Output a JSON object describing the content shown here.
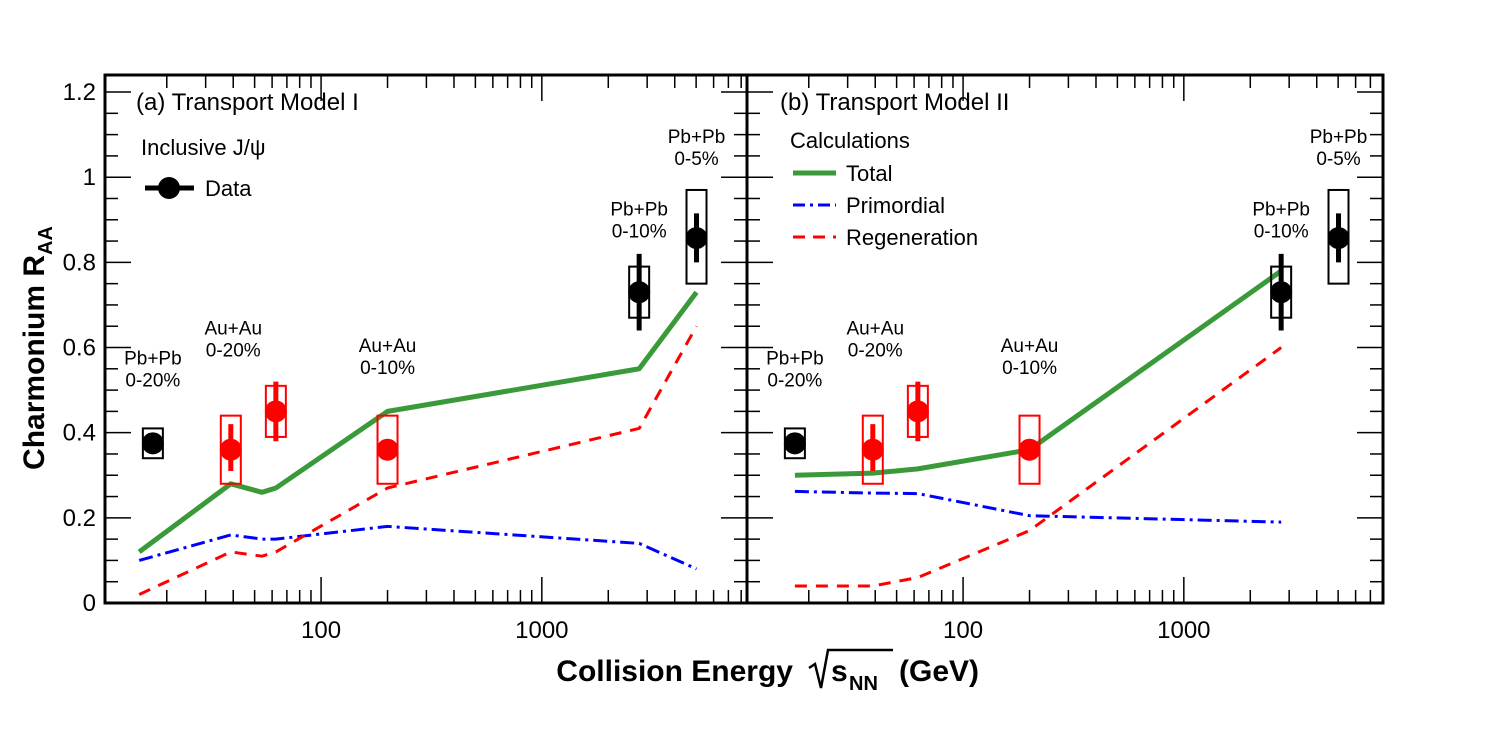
{
  "figure": {
    "ylabel_main": "Charmonium R",
    "ylabel_sub": "AA",
    "xlabel_main": "Collision Energy",
    "xlabel_sqrt": "s",
    "xlabel_sub": "NN",
    "xlabel_unit": "(GeV)",
    "y_ticks": [
      {
        "value": 0,
        "label": "0"
      },
      {
        "value": 0.2,
        "label": "0.2"
      },
      {
        "value": 0.4,
        "label": "0.4"
      },
      {
        "value": 0.6,
        "label": "0.6"
      },
      {
        "value": 0.8,
        "label": "0.8"
      },
      {
        "value": 1.0,
        "label": "1"
      },
      {
        "value": 1.2,
        "label": "1.2"
      }
    ],
    "x_ticks": [
      {
        "value": 100,
        "label": "100"
      },
      {
        "value": 1000,
        "label": "1000"
      }
    ],
    "xlim": [
      10.5,
      8500
    ],
    "ylim": [
      0,
      1.24
    ]
  },
  "legend": {
    "panel_a_title": "Inclusive J/ψ",
    "data_label": "Data",
    "panel_b_title": "Calculations",
    "total_label": "Total",
    "primordial_label": "Primordial",
    "regeneration_label": "Regeneration"
  },
  "colors": {
    "total": "#3a9a3a",
    "primordial": "#0000ff",
    "regeneration": "#ff0000",
    "black_points": "#000000",
    "red_points": "#ff0000"
  },
  "chart_data": [
    {
      "type": "line",
      "panel": "a",
      "title": "(a) Transport Model I",
      "series": [
        {
          "name": "Total",
          "style": "solid",
          "x": [
            15,
            39,
            54,
            62.4,
            200,
            2760,
            5020
          ],
          "y": [
            0.12,
            0.28,
            0.26,
            0.27,
            0.45,
            0.55,
            0.73
          ]
        },
        {
          "name": "Primordial",
          "style": "dashdot",
          "x": [
            15,
            39,
            54,
            62.4,
            200,
            2760,
            5020
          ],
          "y": [
            0.1,
            0.16,
            0.15,
            0.15,
            0.18,
            0.14,
            0.08
          ]
        },
        {
          "name": "Regeneration",
          "style": "dashed",
          "x": [
            15,
            39,
            54,
            62.4,
            200,
            2760,
            5020
          ],
          "y": [
            0.02,
            0.12,
            0.11,
            0.12,
            0.27,
            0.41,
            0.65
          ]
        }
      ],
      "points": [
        {
          "x": 17.3,
          "y": 0.375,
          "color": "black",
          "stat_lo": 0.375,
          "stat_hi": 0.375,
          "sys_lo": 0.34,
          "sys_hi": 0.41
        },
        {
          "x": 39,
          "y": 0.36,
          "color": "red",
          "stat_lo": 0.31,
          "stat_hi": 0.42,
          "sys_lo": 0.28,
          "sys_hi": 0.44
        },
        {
          "x": 62.4,
          "y": 0.45,
          "color": "red",
          "stat_lo": 0.38,
          "stat_hi": 0.52,
          "sys_lo": 0.39,
          "sys_hi": 0.51
        },
        {
          "x": 200,
          "y": 0.36,
          "color": "red",
          "stat_lo": 0.36,
          "stat_hi": 0.36,
          "sys_lo": 0.28,
          "sys_hi": 0.44
        },
        {
          "x": 2760,
          "y": 0.73,
          "color": "black",
          "stat_lo": 0.64,
          "stat_hi": 0.82,
          "sys_lo": 0.67,
          "sys_hi": 0.79
        },
        {
          "x": 5020,
          "y": 0.857,
          "color": "black",
          "stat_lo": 0.8,
          "stat_hi": 0.915,
          "sys_lo": 0.75,
          "sys_hi": 0.97
        }
      ],
      "annotations": [
        {
          "x": 17.3,
          "y": 0.56,
          "lines": [
            "Pb+Pb",
            "0-20%"
          ]
        },
        {
          "x": 40,
          "y": 0.63,
          "lines": [
            "Au+Au",
            "0-20%"
          ]
        },
        {
          "x": 200,
          "y": 0.59,
          "lines": [
            "Au+Au",
            "0-10%"
          ]
        },
        {
          "x": 2760,
          "y": 0.91,
          "lines": [
            "Pb+Pb",
            "0-10%"
          ]
        },
        {
          "x": 5020,
          "y": 1.08,
          "lines": [
            "Pb+Pb",
            "0-5%"
          ]
        }
      ]
    },
    {
      "type": "line",
      "panel": "b",
      "title": "(b) Transport Model II",
      "series": [
        {
          "name": "Total",
          "style": "solid",
          "x": [
            17.3,
            39,
            62.4,
            200,
            2760
          ],
          "y": [
            0.3,
            0.305,
            0.315,
            0.36,
            0.78
          ]
        },
        {
          "name": "Primordial",
          "style": "dashdot",
          "x": [
            17.3,
            39,
            62.4,
            200,
            2760
          ],
          "y": [
            0.262,
            0.258,
            0.257,
            0.205,
            0.19
          ]
        },
        {
          "name": "Regeneration",
          "style": "dashed",
          "x": [
            17.3,
            39,
            62.4,
            200,
            2760
          ],
          "y": [
            0.04,
            0.04,
            0.06,
            0.17,
            0.6
          ]
        }
      ],
      "points": [
        {
          "x": 17.3,
          "y": 0.375,
          "color": "black",
          "stat_lo": 0.375,
          "stat_hi": 0.375,
          "sys_lo": 0.34,
          "sys_hi": 0.41
        },
        {
          "x": 39,
          "y": 0.36,
          "color": "red",
          "stat_lo": 0.31,
          "stat_hi": 0.42,
          "sys_lo": 0.28,
          "sys_hi": 0.44
        },
        {
          "x": 62.4,
          "y": 0.45,
          "color": "red",
          "stat_lo": 0.38,
          "stat_hi": 0.52,
          "sys_lo": 0.39,
          "sys_hi": 0.51
        },
        {
          "x": 200,
          "y": 0.36,
          "color": "red",
          "stat_lo": 0.36,
          "stat_hi": 0.36,
          "sys_lo": 0.28,
          "sys_hi": 0.44
        },
        {
          "x": 2760,
          "y": 0.73,
          "color": "black",
          "stat_lo": 0.64,
          "stat_hi": 0.82,
          "sys_lo": 0.67,
          "sys_hi": 0.79
        },
        {
          "x": 5020,
          "y": 0.857,
          "color": "black",
          "stat_lo": 0.8,
          "stat_hi": 0.915,
          "sys_lo": 0.75,
          "sys_hi": 0.97
        }
      ],
      "annotations": [
        {
          "x": 17.3,
          "y": 0.56,
          "lines": [
            "Pb+Pb",
            "0-20%"
          ]
        },
        {
          "x": 40,
          "y": 0.63,
          "lines": [
            "Au+Au",
            "0-20%"
          ]
        },
        {
          "x": 200,
          "y": 0.59,
          "lines": [
            "Au+Au",
            "0-10%"
          ]
        },
        {
          "x": 2760,
          "y": 0.91,
          "lines": [
            "Pb+Pb",
            "0-10%"
          ]
        },
        {
          "x": 5020,
          "y": 1.08,
          "lines": [
            "Pb+Pb",
            "0-5%"
          ]
        }
      ]
    }
  ]
}
